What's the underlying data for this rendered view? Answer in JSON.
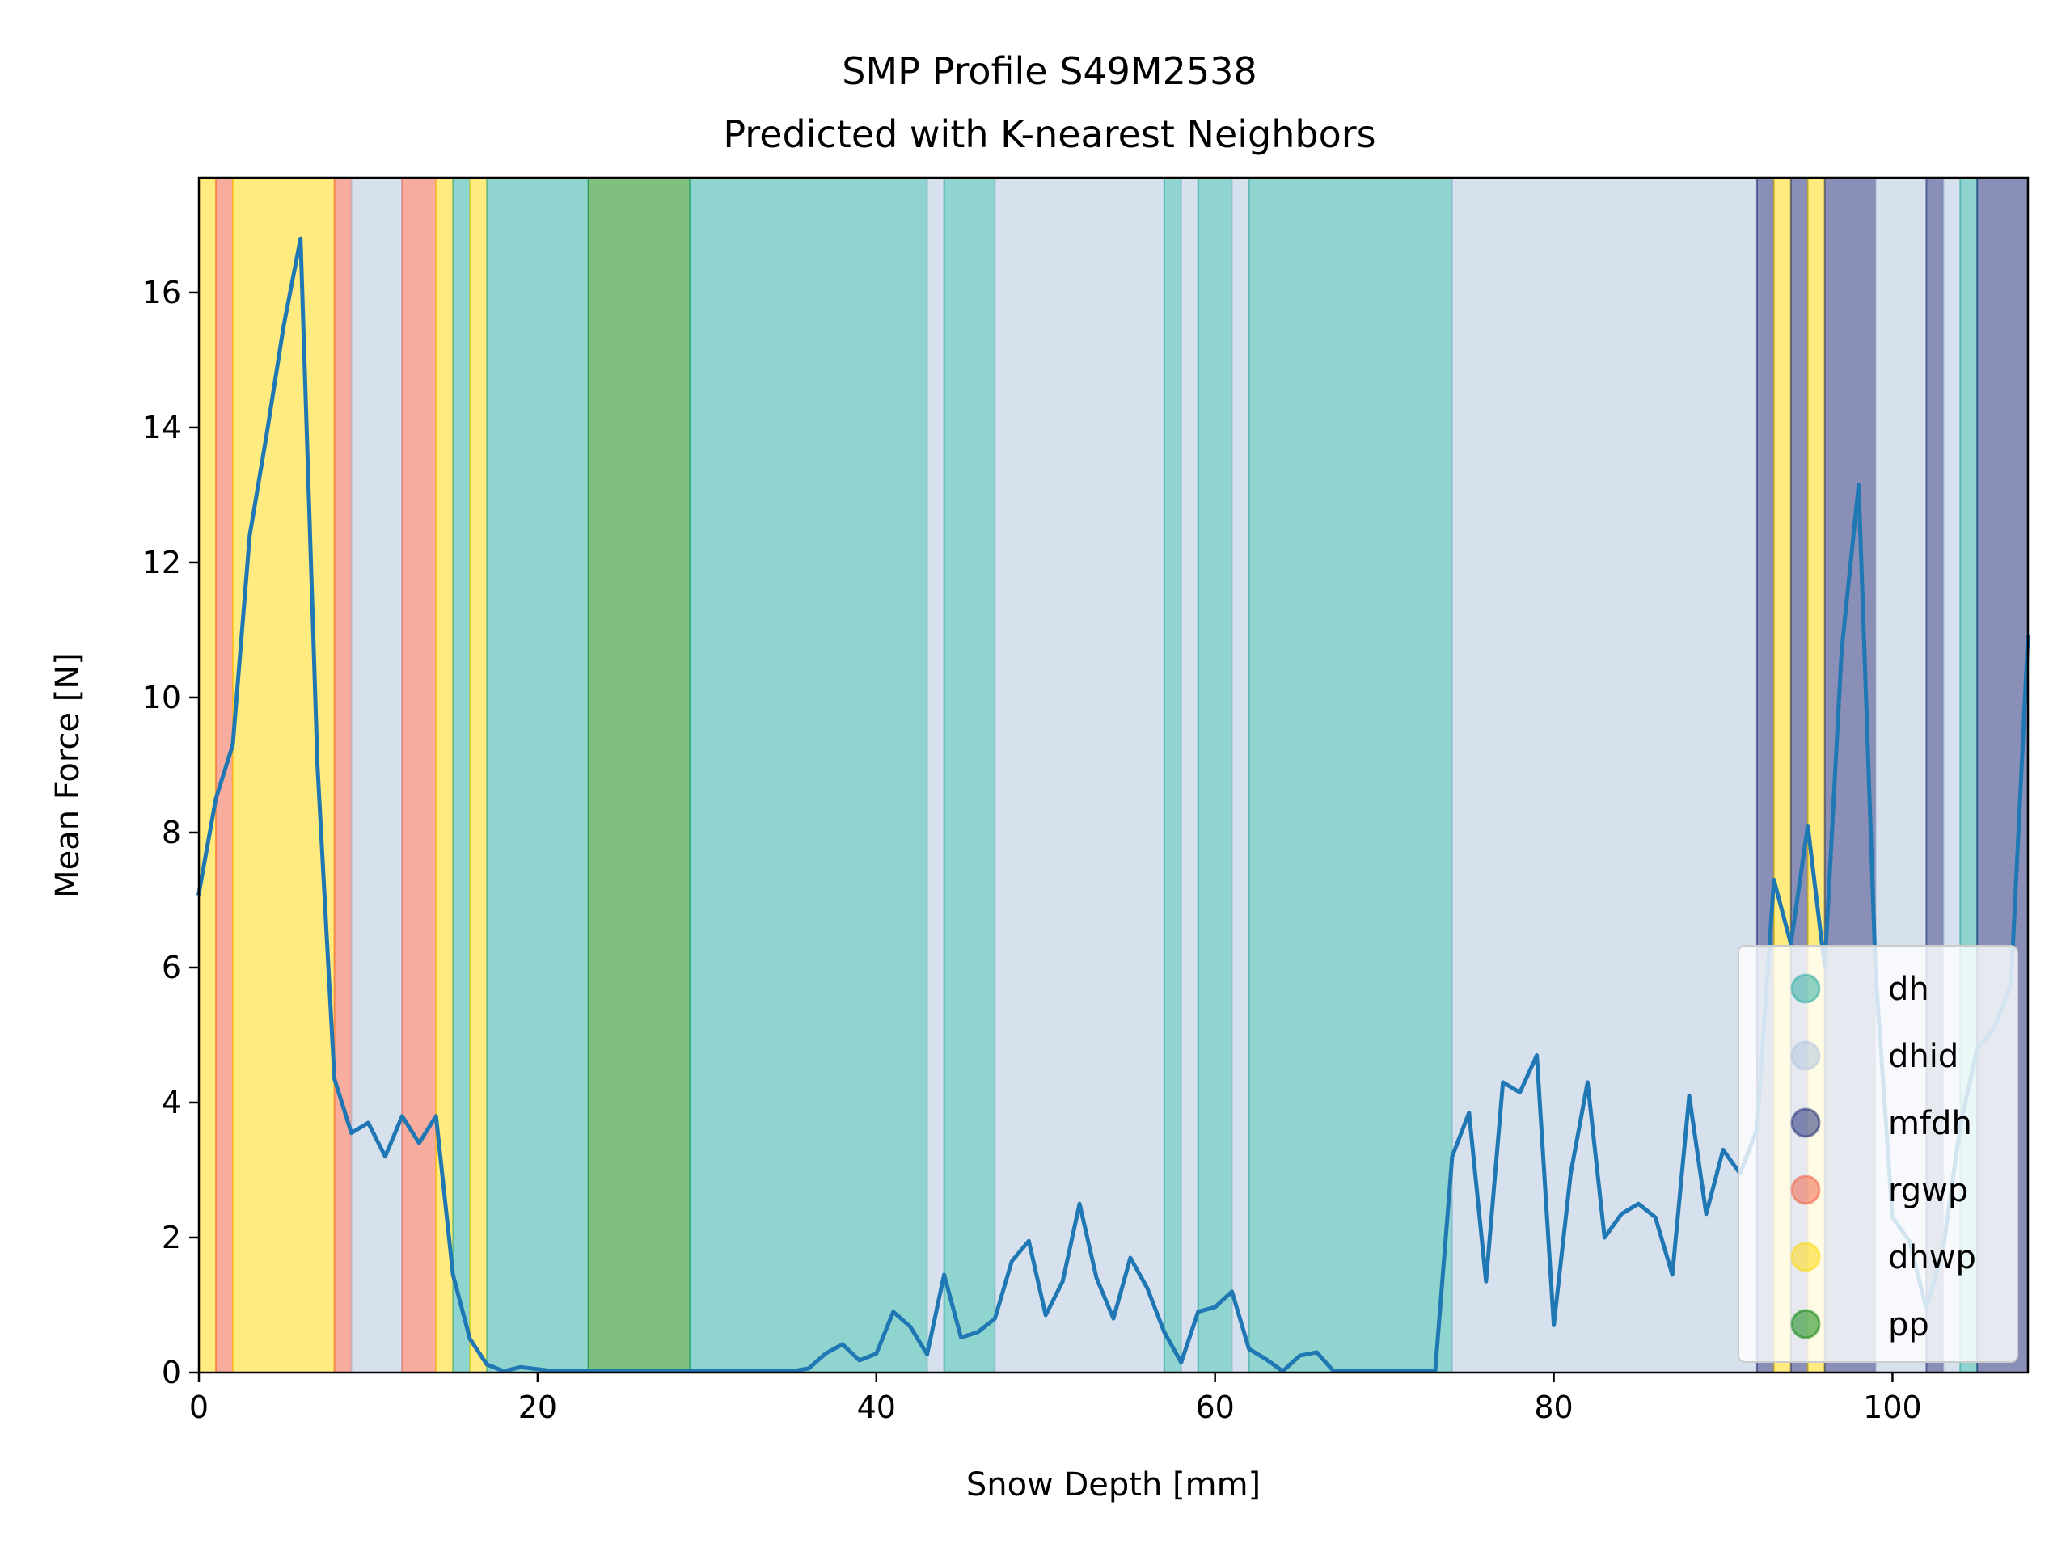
{
  "chart_data": {
    "type": "line",
    "title": "SMP Profile S49M2538",
    "subtitle": "Predicted with K-nearest Neighbors",
    "xlabel": "Snow Depth [mm]",
    "ylabel": "Mean Force [N]",
    "xlim": [
      0,
      108
    ],
    "ylim": [
      0,
      17.7
    ],
    "xticks": [
      0,
      20,
      40,
      60,
      80,
      100
    ],
    "yticks": [
      0,
      2,
      4,
      6,
      8,
      10,
      12,
      14,
      16
    ],
    "grid": false,
    "legend_position": "lower right",
    "legend": [
      {
        "label": "dh",
        "color": "#22aaa0"
      },
      {
        "label": "dhid",
        "color": "#b0c4de"
      },
      {
        "label": "mfdh",
        "color": "#141f6e"
      },
      {
        "label": "rgwp",
        "color": "#f05a3c"
      },
      {
        "label": "dhwp",
        "color": "#ffd700"
      },
      {
        "label": "pp",
        "color": "#008000"
      }
    ],
    "line_color": "#1f77b4",
    "series": [
      {
        "x": [
          0,
          1,
          2,
          3,
          4,
          5,
          6,
          7,
          8,
          9,
          10,
          11,
          12,
          13,
          14,
          15,
          16,
          17,
          18,
          19,
          20,
          21,
          22,
          23,
          24,
          25,
          26,
          27,
          28,
          29,
          30,
          31,
          32,
          33,
          34,
          35,
          36,
          37,
          38,
          39,
          40,
          41,
          42,
          43,
          44,
          45,
          46,
          47,
          48,
          49,
          50,
          51,
          52,
          53,
          54,
          55,
          56,
          57,
          58,
          59,
          60,
          61,
          62,
          63,
          64,
          65,
          66,
          67,
          68,
          69,
          70,
          71,
          72,
          73,
          74,
          75,
          76,
          77,
          78,
          79,
          80,
          81,
          82,
          83,
          84,
          85,
          86,
          87,
          88,
          89,
          90,
          91,
          92,
          93,
          94,
          95,
          96,
          97,
          98,
          99,
          100,
          101,
          102,
          103,
          104,
          105,
          106,
          107,
          108
        ],
        "y": [
          7.1,
          8.5,
          9.3,
          12.4,
          13.9,
          15.5,
          16.8,
          9.0,
          4.35,
          3.55,
          3.7,
          3.2,
          3.8,
          3.4,
          3.8,
          1.45,
          0.5,
          0.12,
          0.02,
          0.08,
          0.05,
          0.02,
          0.02,
          0.02,
          0.02,
          0.02,
          0.02,
          0.02,
          0.02,
          0.02,
          0.02,
          0.02,
          0.02,
          0.02,
          0.02,
          0.02,
          0.06,
          0.28,
          0.42,
          0.18,
          0.28,
          0.9,
          0.68,
          0.27,
          1.45,
          0.52,
          0.6,
          0.8,
          1.65,
          1.95,
          0.85,
          1.35,
          2.5,
          1.4,
          0.8,
          1.7,
          1.25,
          0.6,
          0.15,
          0.9,
          0.97,
          1.2,
          0.35,
          0.2,
          0.02,
          0.25,
          0.3,
          0.02,
          0.02,
          0.02,
          0.02,
          0.03,
          0.02,
          0.02,
          3.2,
          3.85,
          1.35,
          4.3,
          4.15,
          4.7,
          0.7,
          2.95,
          4.3,
          2.0,
          2.35,
          2.5,
          2.3,
          1.45,
          4.1,
          2.35,
          3.3,
          2.95,
          3.6,
          7.3,
          6.35,
          8.1,
          6.0,
          10.7,
          13.15,
          5.95,
          2.3,
          1.95,
          0.95,
          1.85,
          3.65,
          4.8,
          5.1,
          5.75,
          10.9
        ]
      }
    ],
    "bands": [
      {
        "from": 0,
        "to": 1,
        "class": "dhwp"
      },
      {
        "from": 1,
        "to": 2,
        "class": "rgwp"
      },
      {
        "from": 2,
        "to": 8,
        "class": "dhwp"
      },
      {
        "from": 8,
        "to": 9,
        "class": "rgwp"
      },
      {
        "from": 9,
        "to": 12,
        "class": "dhid"
      },
      {
        "from": 12,
        "to": 14,
        "class": "rgwp"
      },
      {
        "from": 14,
        "to": 15,
        "class": "dhwp"
      },
      {
        "from": 15,
        "to": 16,
        "class": "dh"
      },
      {
        "from": 16,
        "to": 17,
        "class": "dhwp"
      },
      {
        "from": 17,
        "to": 23,
        "class": "dh"
      },
      {
        "from": 23,
        "to": 29,
        "class": "pp"
      },
      {
        "from": 29,
        "to": 43,
        "class": "dh"
      },
      {
        "from": 43,
        "to": 44,
        "class": "dhid"
      },
      {
        "from": 44,
        "to": 47,
        "class": "dh"
      },
      {
        "from": 47,
        "to": 57,
        "class": "dhid"
      },
      {
        "from": 57,
        "to": 58,
        "class": "dh"
      },
      {
        "from": 58,
        "to": 59,
        "class": "dhid"
      },
      {
        "from": 59,
        "to": 61,
        "class": "dh"
      },
      {
        "from": 61,
        "to": 62,
        "class": "dhid"
      },
      {
        "from": 62,
        "to": 74,
        "class": "dh"
      },
      {
        "from": 74,
        "to": 92,
        "class": "dhid"
      },
      {
        "from": 92,
        "to": 93,
        "class": "mfdh"
      },
      {
        "from": 93,
        "to": 94,
        "class": "dhwp"
      },
      {
        "from": 94,
        "to": 95,
        "class": "mfdh"
      },
      {
        "from": 95,
        "to": 96,
        "class": "dhwp"
      },
      {
        "from": 96,
        "to": 99,
        "class": "mfdh"
      },
      {
        "from": 99,
        "to": 102,
        "class": "dhid"
      },
      {
        "from": 102,
        "to": 103,
        "class": "mfdh"
      },
      {
        "from": 103,
        "to": 104,
        "class": "dhid"
      },
      {
        "from": 104,
        "to": 105,
        "class": "dh"
      },
      {
        "from": 105,
        "to": 108,
        "class": "mfdh"
      }
    ]
  }
}
